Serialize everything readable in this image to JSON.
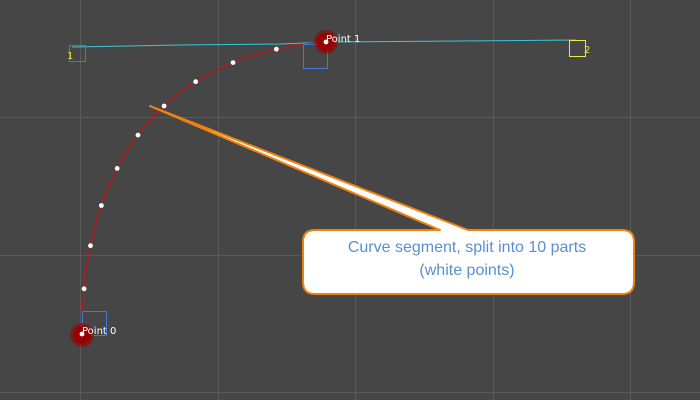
{
  "points": [
    {
      "label": "Point 0"
    },
    {
      "label": "Point 1"
    }
  ],
  "handles": [
    {
      "label": "1"
    },
    {
      "label": "2"
    }
  ],
  "segment": {
    "split_parts": 10
  },
  "callout": {
    "line1": "Curve segment, split into 10 parts",
    "line2": "(white points)"
  },
  "colors": {
    "background": "#464646",
    "grid": "#5a5a5a",
    "curve": "#b01a1a",
    "point": "#990000",
    "tangent": "#39c8d8",
    "handle": "#e8e84a",
    "point_box": "#4a74d8",
    "callout_fill": "#ffffff",
    "callout_border": "#f0820f",
    "callout_text": "#5a8fd0"
  }
}
